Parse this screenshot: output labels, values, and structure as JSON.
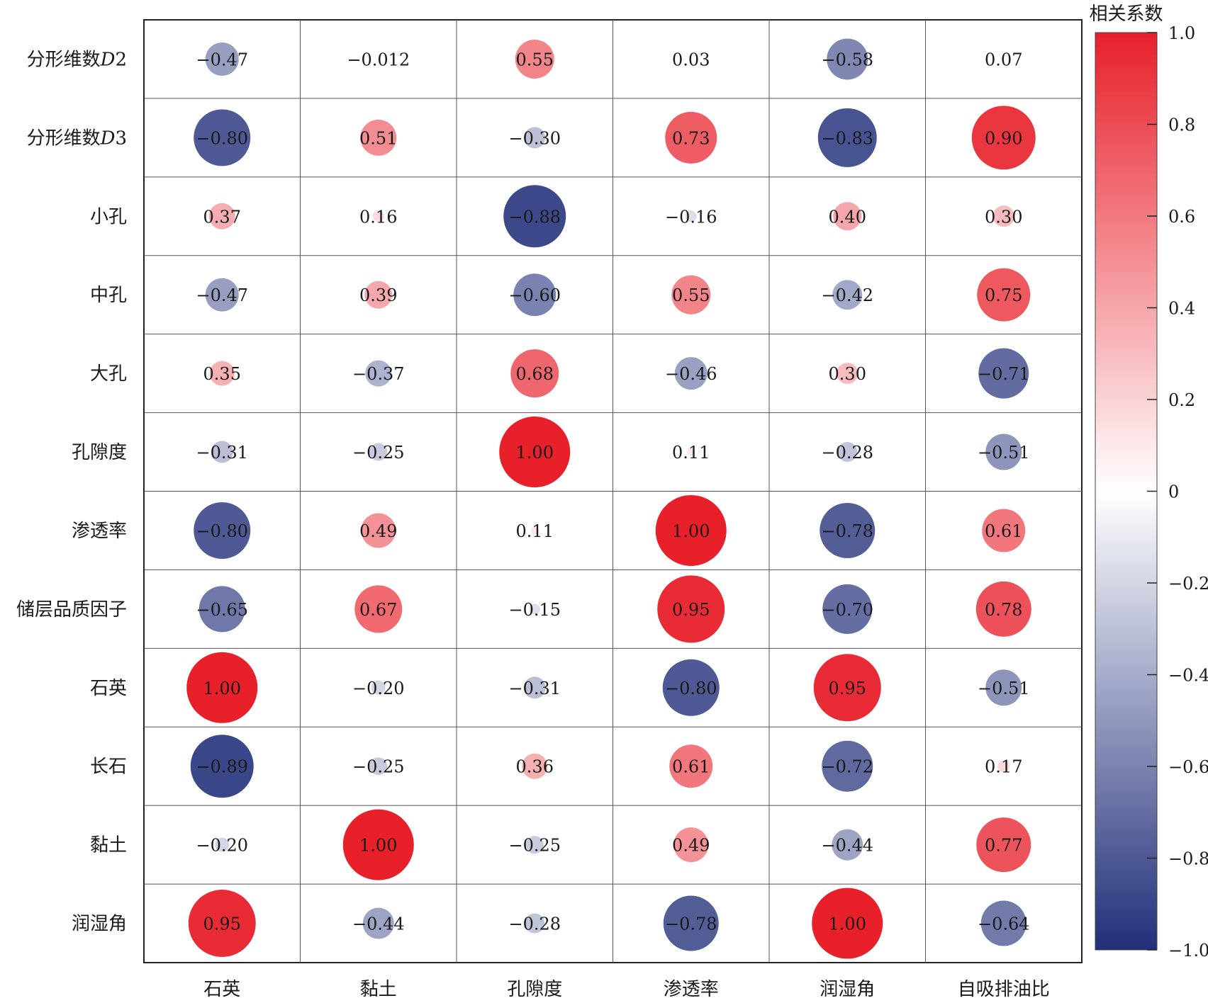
{
  "chart_data": {
    "type": "heatmap",
    "rows": [
      "分形维数D2",
      "分形维数D3",
      "小孔",
      "中孔",
      "大孔",
      "孔隙度",
      "渗透率",
      "储层品质因子",
      "石英",
      "长石",
      "黏土",
      "润湿角"
    ],
    "row_label_parts": [
      {
        "text": "分形维数",
        "italic": "D",
        "suffix": "2"
      },
      {
        "text": "分形维数",
        "italic": "D",
        "suffix": "3"
      },
      {
        "text": "小孔"
      },
      {
        "text": "中孔"
      },
      {
        "text": "大孔"
      },
      {
        "text": "孔隙度"
      },
      {
        "text": "渗透率"
      },
      {
        "text": "储层品质因子"
      },
      {
        "text": "石英"
      },
      {
        "text": "长石"
      },
      {
        "text": "黏土"
      },
      {
        "text": "润湿角"
      }
    ],
    "columns": [
      "石英",
      "黏土",
      "孔隙度",
      "渗透率",
      "润湿角",
      "自吸排油比"
    ],
    "values": [
      [
        -0.47,
        -0.012,
        0.55,
        0.03,
        -0.58,
        0.07
      ],
      [
        -0.8,
        0.51,
        -0.3,
        0.73,
        -0.83,
        0.9
      ],
      [
        0.37,
        0.16,
        -0.88,
        -0.16,
        0.4,
        0.3
      ],
      [
        -0.47,
        0.39,
        -0.6,
        0.55,
        -0.42,
        0.75
      ],
      [
        0.35,
        -0.37,
        0.68,
        -0.46,
        0.3,
        -0.71
      ],
      [
        -0.31,
        -0.25,
        1.0,
        0.11,
        -0.28,
        -0.51
      ],
      [
        -0.8,
        0.49,
        0.11,
        1.0,
        -0.78,
        0.61
      ],
      [
        -0.65,
        0.67,
        -0.15,
        0.95,
        -0.7,
        0.78
      ],
      [
        1.0,
        -0.2,
        -0.31,
        -0.8,
        0.95,
        -0.51
      ],
      [
        -0.89,
        -0.25,
        0.36,
        0.61,
        -0.72,
        0.17
      ],
      [
        -0.2,
        1.0,
        -0.25,
        0.49,
        -0.44,
        0.77
      ],
      [
        0.95,
        -0.44,
        -0.28,
        -0.78,
        1.0,
        -0.64
      ]
    ],
    "labels": [
      [
        "−0.47",
        "−0.012",
        "0.55",
        "0.03",
        "−0.58",
        "0.07"
      ],
      [
        "−0.80",
        "0.51",
        "−0.30",
        "0.73",
        "−0.83",
        "0.90"
      ],
      [
        "0.37",
        "0.16",
        "−0.88",
        "−0.16",
        "0.40",
        "0.30"
      ],
      [
        "−0.47",
        "0.39",
        "−0.60",
        "0.55",
        "−0.42",
        "0.75"
      ],
      [
        "0.35",
        "−0.37",
        "0.68",
        "−0.46",
        "0.30",
        "−0.71"
      ],
      [
        "−0.31",
        "−0.25",
        "1.00",
        "0.11",
        "−0.28",
        "−0.51"
      ],
      [
        "−0.80",
        "0.49",
        "0.11",
        "1.00",
        "−0.78",
        "0.61"
      ],
      [
        "−0.65",
        "0.67",
        "−0.15",
        "0.95",
        "−0.70",
        "0.78"
      ],
      [
        "1.00",
        "−0.20",
        "−0.31",
        "−0.80",
        "0.95",
        "−0.51"
      ],
      [
        "−0.89",
        "−0.25",
        "0.36",
        "0.61",
        "−0.72",
        "0.17"
      ],
      [
        "−0.20",
        "1.00",
        "−0.25",
        "0.49",
        "−0.44",
        "0.77"
      ],
      [
        "0.95",
        "−0.44",
        "−0.28",
        "−0.78",
        "1.00",
        "−0.64"
      ]
    ],
    "colorbar": {
      "title": "相关系数",
      "range": [
        -1.0,
        1.0
      ],
      "ticks": [
        1.0,
        0.8,
        0.6,
        0.4,
        0.2,
        0,
        -0.2,
        -0.4,
        -0.6,
        -0.8,
        -1.0
      ],
      "tick_labels": [
        "1.0",
        "0.8",
        "0.6",
        "0.4",
        "0.2",
        "0",
        "−0.2",
        "−0.4",
        "−0.6",
        "−0.8",
        "−1.0"
      ],
      "colors": {
        "negative": "#22307a",
        "neutral": "#ffffff",
        "positive": "#e8202a"
      }
    },
    "marker": "circle"
  }
}
